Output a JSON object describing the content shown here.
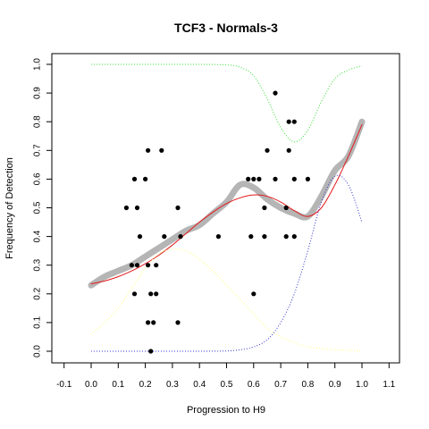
{
  "chart_data": {
    "type": "scatter",
    "title": "TCF3 - Normals-3",
    "xlabel": "Progression to H9",
    "ylabel": "Frequency of Detection",
    "xlim": [
      -0.1,
      1.1
    ],
    "ylim": [
      0.0,
      1.0
    ],
    "xticks": [
      "-0.1",
      "0.0",
      "0.1",
      "0.2",
      "0.3",
      "0.4",
      "0.5",
      "0.6",
      "0.7",
      "0.8",
      "0.9",
      "1.0",
      "1.1"
    ],
    "yticks": [
      "0.0",
      "0.1",
      "0.2",
      "0.3",
      "0.4",
      "0.5",
      "0.6",
      "0.7",
      "0.8",
      "0.9",
      "1.0"
    ],
    "grid": false,
    "legend": false,
    "points": [
      [
        0.22,
        0.0
      ],
      [
        0.21,
        0.1
      ],
      [
        0.23,
        0.1
      ],
      [
        0.32,
        0.1
      ],
      [
        0.16,
        0.2
      ],
      [
        0.22,
        0.2
      ],
      [
        0.24,
        0.2
      ],
      [
        0.6,
        0.2
      ],
      [
        0.15,
        0.3
      ],
      [
        0.17,
        0.3
      ],
      [
        0.21,
        0.3
      ],
      [
        0.24,
        0.3
      ],
      [
        0.18,
        0.4
      ],
      [
        0.27,
        0.4
      ],
      [
        0.33,
        0.4
      ],
      [
        0.47,
        0.4
      ],
      [
        0.59,
        0.4
      ],
      [
        0.64,
        0.4
      ],
      [
        0.72,
        0.4
      ],
      [
        0.75,
        0.4
      ],
      [
        0.13,
        0.5
      ],
      [
        0.17,
        0.5
      ],
      [
        0.32,
        0.5
      ],
      [
        0.64,
        0.5
      ],
      [
        0.72,
        0.5
      ],
      [
        0.16,
        0.6
      ],
      [
        0.2,
        0.6
      ],
      [
        0.58,
        0.6
      ],
      [
        0.6,
        0.6
      ],
      [
        0.62,
        0.6
      ],
      [
        0.68,
        0.6
      ],
      [
        0.75,
        0.6
      ],
      [
        0.8,
        0.6
      ],
      [
        0.21,
        0.7
      ],
      [
        0.26,
        0.7
      ],
      [
        0.65,
        0.7
      ],
      [
        0.73,
        0.7
      ],
      [
        0.73,
        0.8
      ],
      [
        0.75,
        0.8
      ],
      [
        0.68,
        0.9
      ]
    ],
    "series": [
      {
        "style": "gray-thick",
        "x": [
          0.0,
          0.05,
          0.1,
          0.15,
          0.2,
          0.25,
          0.3,
          0.35,
          0.4,
          0.45,
          0.5,
          0.55,
          0.6,
          0.65,
          0.7,
          0.75,
          0.8,
          0.85,
          0.9,
          0.95,
          1.0
        ],
        "y": [
          0.23,
          0.26,
          0.28,
          0.3,
          0.33,
          0.36,
          0.39,
          0.42,
          0.44,
          0.48,
          0.52,
          0.58,
          0.57,
          0.53,
          0.5,
          0.48,
          0.47,
          0.54,
          0.63,
          0.68,
          0.8
        ]
      },
      {
        "style": "red-smooth",
        "x": [
          0.0,
          0.05,
          0.1,
          0.15,
          0.2,
          0.25,
          0.3,
          0.35,
          0.4,
          0.45,
          0.5,
          0.55,
          0.6,
          0.65,
          0.7,
          0.75,
          0.8,
          0.85,
          0.9,
          0.95,
          1.0
        ],
        "y": [
          0.235,
          0.245,
          0.26,
          0.28,
          0.305,
          0.335,
          0.37,
          0.41,
          0.45,
          0.485,
          0.515,
          0.535,
          0.545,
          0.54,
          0.52,
          0.49,
          0.47,
          0.5,
          0.58,
          0.68,
          0.79
        ]
      },
      {
        "style": "green-dotted",
        "x": [
          0.0,
          0.1,
          0.2,
          0.3,
          0.4,
          0.5,
          0.55,
          0.6,
          0.65,
          0.7,
          0.75,
          0.8,
          0.85,
          0.9,
          0.95,
          1.0
        ],
        "y": [
          1.0,
          1.0,
          1.0,
          1.0,
          1.0,
          0.998,
          0.99,
          0.96,
          0.88,
          0.78,
          0.73,
          0.77,
          0.87,
          0.95,
          0.98,
          0.995
        ]
      },
      {
        "style": "yellow-dotted",
        "x": [
          0.0,
          0.05,
          0.1,
          0.15,
          0.2,
          0.25,
          0.3,
          0.35,
          0.4,
          0.45,
          0.5,
          0.55,
          0.6,
          0.65,
          0.7,
          0.75,
          0.8,
          0.85,
          0.9,
          0.95,
          1.0
        ],
        "y": [
          0.06,
          0.1,
          0.15,
          0.22,
          0.29,
          0.34,
          0.355,
          0.35,
          0.32,
          0.28,
          0.23,
          0.18,
          0.13,
          0.08,
          0.05,
          0.03,
          0.015,
          0.01,
          0.005,
          0.003,
          0.002
        ]
      },
      {
        "style": "blue-dotted",
        "x": [
          0.0,
          0.1,
          0.2,
          0.3,
          0.4,
          0.5,
          0.55,
          0.6,
          0.65,
          0.7,
          0.75,
          0.8,
          0.85,
          0.9,
          0.95,
          1.0
        ],
        "y": [
          0.0,
          0.0,
          0.0,
          0.0,
          0.0,
          0.001,
          0.005,
          0.015,
          0.04,
          0.1,
          0.2,
          0.35,
          0.52,
          0.61,
          0.58,
          0.45
        ]
      }
    ],
    "colors": {
      "gray-thick": "#b5b5b5",
      "red-smooth": "#e31a1c",
      "green-dotted": "#33dd33",
      "yellow-dotted": "#ffff77",
      "blue-dotted": "#3333cc",
      "points": "#000000"
    }
  }
}
